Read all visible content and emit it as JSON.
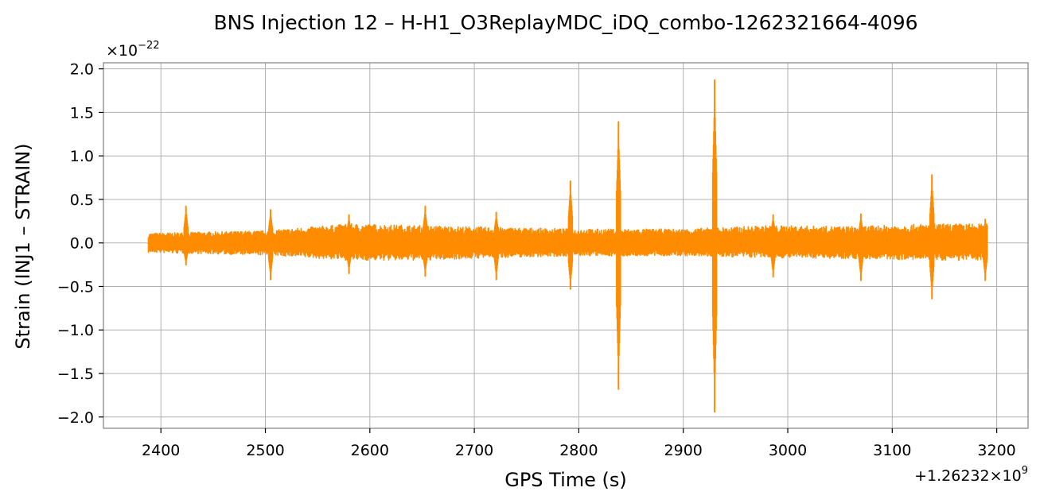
{
  "chart_data": {
    "type": "line",
    "title": "BNS Injection 12 – H-H1_O3ReplayMDC_iDQ_combo-1262321664-4096",
    "xlabel": "GPS Time (s)",
    "ylabel": "Strain (INJ1 – STRAIN)",
    "x_offset_label": "+1.26232×10⁹",
    "x_offset_base": "+1.26232",
    "x_offset_exp": "9",
    "y_scale_label": "×10⁻²²",
    "y_scale_base": "×10",
    "y_scale_exp": "−22",
    "xlim": [
      2345,
      3230
    ],
    "ylim": [
      -2.13,
      2.07
    ],
    "xticks": [
      2400,
      2500,
      2600,
      2700,
      2800,
      2900,
      3000,
      3100,
      3200
    ],
    "xtick_labels": [
      "2400",
      "2500",
      "2600",
      "2700",
      "2800",
      "2900",
      "3000",
      "3100",
      "3200"
    ],
    "yticks": [
      -2.0,
      -1.5,
      -1.0,
      -0.5,
      0.0,
      0.5,
      1.0,
      1.5,
      2.0
    ],
    "ytick_labels": [
      "−2.0",
      "−1.5",
      "−1.0",
      "−0.5",
      "0.0",
      "0.5",
      "1.0",
      "1.5",
      "2.0"
    ],
    "grid": true,
    "color": "#ff8c00",
    "series": [
      {
        "x_range": [
          2388,
          3191
        ],
        "baseline_envelope": [
          [
            2388,
            0.11,
            -0.11
          ],
          [
            2420,
            0.12,
            -0.12
          ],
          [
            2500,
            0.14,
            -0.14
          ],
          [
            2580,
            0.22,
            -0.2
          ],
          [
            2650,
            0.2,
            -0.2
          ],
          [
            2720,
            0.18,
            -0.17
          ],
          [
            2800,
            0.16,
            -0.15
          ],
          [
            2900,
            0.16,
            -0.15
          ],
          [
            2980,
            0.2,
            -0.17
          ],
          [
            3060,
            0.19,
            -0.18
          ],
          [
            3140,
            0.22,
            -0.2
          ],
          [
            3191,
            0.22,
            -0.2
          ]
        ],
        "spikes": [
          {
            "x": 2424,
            "max": 0.42,
            "min": -0.25
          },
          {
            "x": 2505,
            "max": 0.38,
            "min": -0.42
          },
          {
            "x": 2580,
            "max": 0.32,
            "min": -0.35
          },
          {
            "x": 2653,
            "max": 0.42,
            "min": -0.38
          },
          {
            "x": 2721,
            "max": 0.35,
            "min": -0.42
          },
          {
            "x": 2792,
            "max": 0.71,
            "min": -0.53
          },
          {
            "x": 2838,
            "max": 1.39,
            "min": -1.68
          },
          {
            "x": 2930,
            "max": 1.87,
            "min": -1.94
          },
          {
            "x": 2986,
            "max": 0.32,
            "min": -0.39
          },
          {
            "x": 3070,
            "max": 0.33,
            "min": -0.43
          },
          {
            "x": 3138,
            "max": 0.78,
            "min": -0.64
          },
          {
            "x": 3189,
            "max": 0.27,
            "min": -0.43
          }
        ]
      }
    ]
  }
}
